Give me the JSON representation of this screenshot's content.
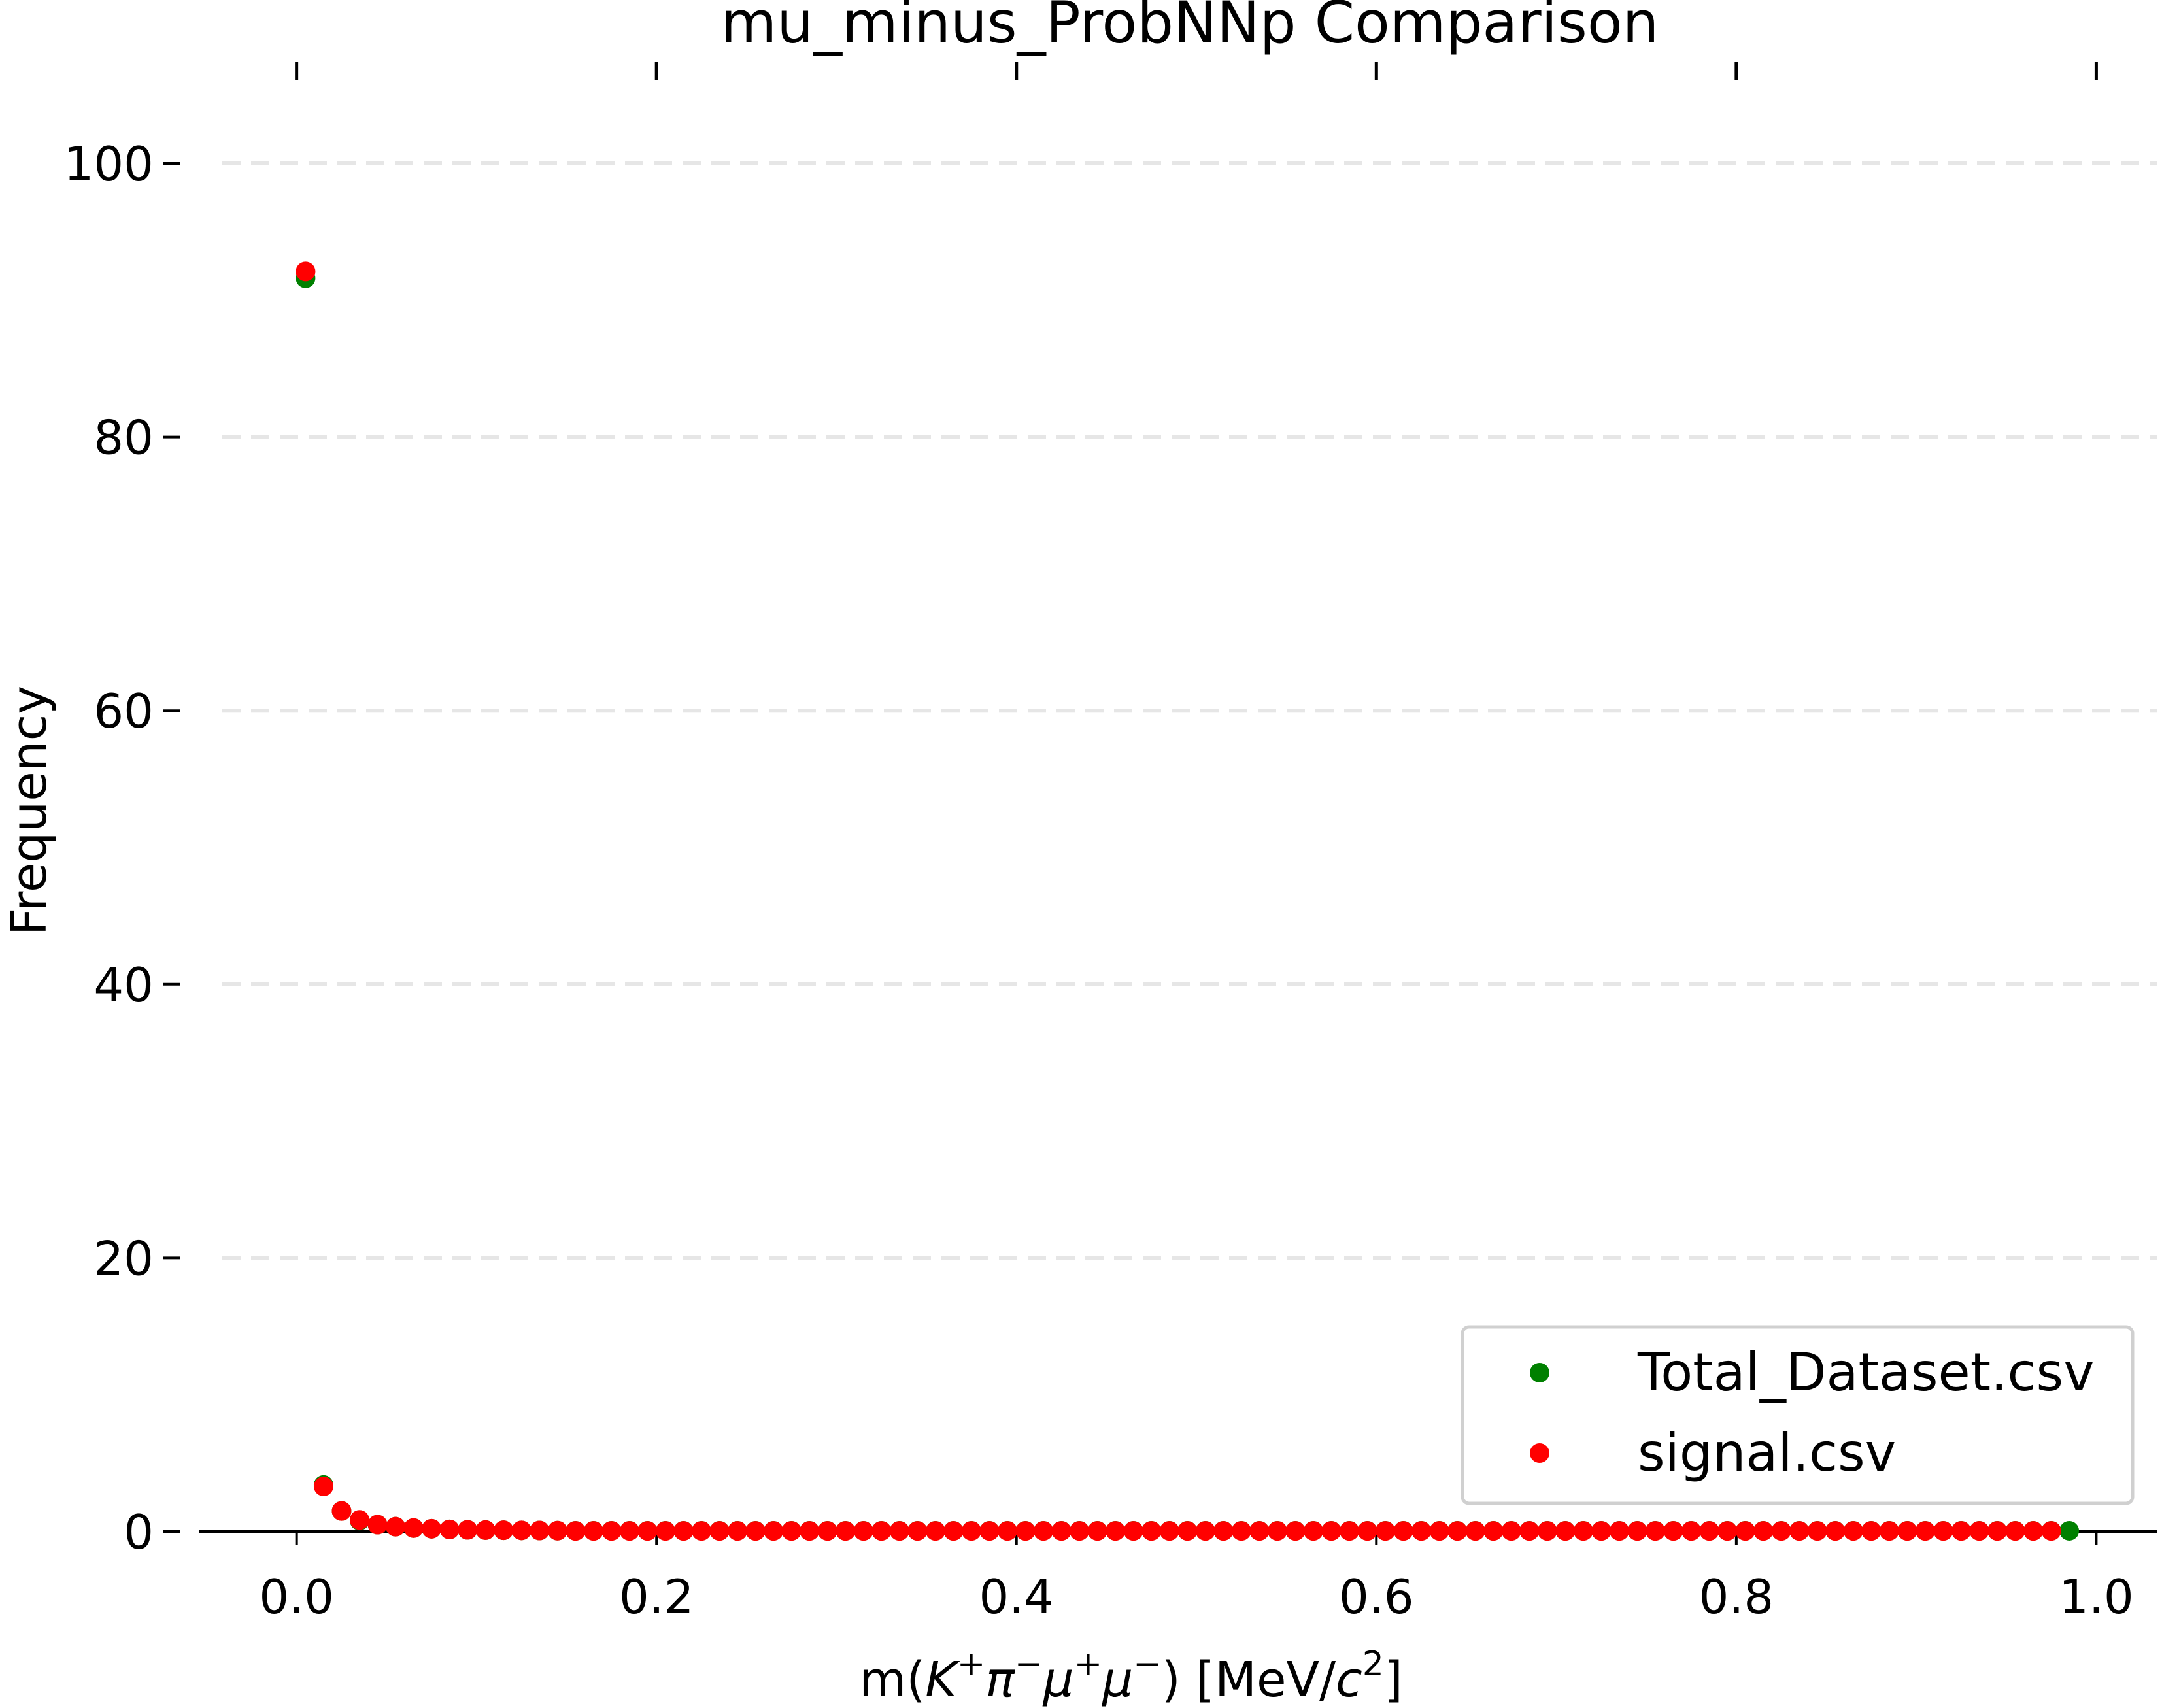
{
  "chart_data": {
    "type": "scatter",
    "title": "mu_minus_ProbNNp Comparison",
    "xlabel": "m(K⁺π⁻μ⁺μ⁻) [MeV/c²]",
    "ylabel": "Frequency",
    "xlim": [
      -0.054,
      1.034
    ],
    "ylim": [
      0,
      100
    ],
    "xticks": [
      0.0,
      0.2,
      0.4,
      0.6,
      0.8,
      1.0
    ],
    "xtick_labels": [
      "0.0",
      "0.2",
      "0.4",
      "0.6",
      "0.8",
      "1.0"
    ],
    "yticks": [
      0,
      20,
      40,
      60,
      80,
      100
    ],
    "ytick_labels": [
      "0",
      "20",
      "40",
      "60",
      "80",
      "100"
    ],
    "grid": "horizontal dashed",
    "legend_position": "lower right",
    "colors": {
      "Total_Dataset.csv": "#008000",
      "signal.csv": "#ff0000"
    },
    "bin_width": 0.01,
    "x_first_bin_center": 0.005,
    "series": [
      {
        "name": "Total_Dataset.csv",
        "color": "#008000",
        "head_values": [
          91.6,
          3.4,
          1.5,
          0.8,
          0.5,
          0.35,
          0.25,
          0.2,
          0.15,
          0.12,
          0.1,
          0.09,
          0.08,
          0.07,
          0.06
        ],
        "tail_value": 0.05,
        "count": 99
      },
      {
        "name": "signal.csv",
        "color": "#ff0000",
        "head_values": [
          92.1,
          3.3,
          1.5,
          0.85,
          0.5,
          0.35,
          0.25,
          0.2,
          0.15,
          0.12,
          0.1,
          0.09,
          0.08,
          0.07,
          0.06
        ],
        "tail_value": 0.04,
        "count": 98
      }
    ]
  }
}
